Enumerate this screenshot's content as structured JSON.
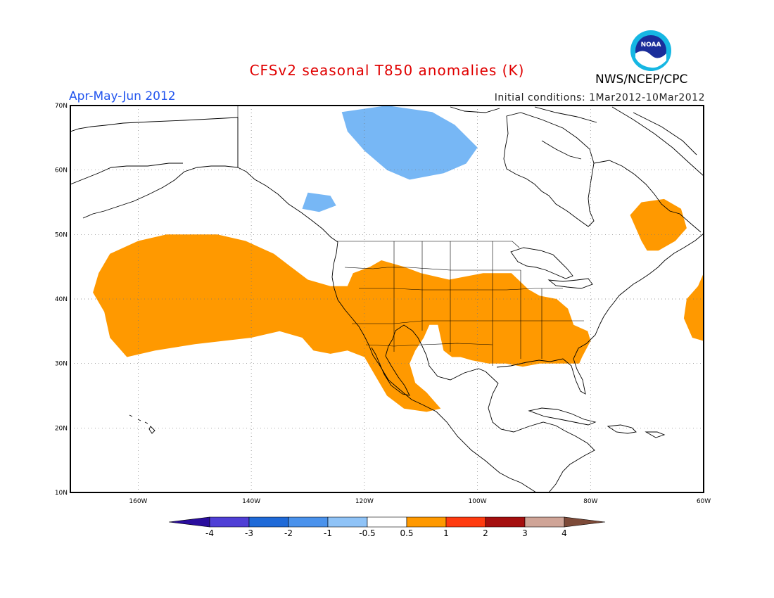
{
  "title": "CFSv2 seasonal T850 anomalies (K)",
  "period": "Apr-May-Jun 2012",
  "initial_conditions": "Initial conditions: 1Mar2012-10Mar2012",
  "agency": "NWS/NCEP/CPC",
  "logo_text": "NOAA",
  "colors": {
    "warm": "#ff9900",
    "cool": "#77b7f5",
    "coast": "#000000",
    "grid": "#777777"
  },
  "chart_data": {
    "type": "heatmap",
    "lon_range": [
      -172,
      -60
    ],
    "lat_range": [
      10,
      70
    ],
    "lon_ticks": [
      "160W",
      "140W",
      "120W",
      "100W",
      "80W",
      "60W"
    ],
    "lat_ticks": [
      "10N",
      "20N",
      "30N",
      "40N",
      "50N",
      "60N",
      "70N"
    ],
    "colorbar": {
      "labels": [
        "-4",
        "-3",
        "-2",
        "-1",
        "-0.5",
        "0.5",
        "1",
        "2",
        "3",
        "4"
      ],
      "colors": [
        "#2a0d9e",
        "#4f3fd6",
        "#1f6ad8",
        "#4a92ec",
        "#8fc3f7",
        "#ffffff",
        "#ff9900",
        "#ff3b10",
        "#a50f0f",
        "#cfa497",
        "#7d4a38"
      ]
    },
    "regions": [
      {
        "category": "0.5 to 1",
        "color": "#ff9900",
        "name_hint": "Pacific / US / Mexico",
        "points": [
          [
            -167,
            44
          ],
          [
            -165,
            47
          ],
          [
            -160,
            49
          ],
          [
            -155,
            50
          ],
          [
            -146,
            50
          ],
          [
            -141,
            49
          ],
          [
            -136,
            47
          ],
          [
            -133,
            45
          ],
          [
            -130,
            43
          ],
          [
            -126,
            42
          ],
          [
            -123,
            42
          ],
          [
            -122,
            44
          ],
          [
            -119,
            45
          ],
          [
            -117,
            46
          ],
          [
            -113,
            45
          ],
          [
            -110,
            44
          ],
          [
            -105,
            43
          ],
          [
            -99,
            44
          ],
          [
            -94,
            44
          ],
          [
            -91,
            41.5
          ],
          [
            -89,
            40.5
          ],
          [
            -86,
            40
          ],
          [
            -84,
            38.5
          ],
          [
            -83,
            36
          ],
          [
            -80.5,
            35
          ],
          [
            -80,
            33.5
          ],
          [
            -81.5,
            31
          ],
          [
            -82,
            30
          ],
          [
            -85,
            30
          ],
          [
            -89,
            30
          ],
          [
            -92,
            29.5
          ],
          [
            -95,
            30
          ],
          [
            -98,
            30
          ],
          [
            -101,
            30.5
          ],
          [
            -103,
            31
          ],
          [
            -104.5,
            31
          ],
          [
            -106,
            32
          ],
          [
            -107,
            36
          ],
          [
            -108.5,
            36
          ],
          [
            -109.5,
            34
          ],
          [
            -111,
            32
          ],
          [
            -112,
            30
          ],
          [
            -111,
            27
          ],
          [
            -109,
            25.5
          ],
          [
            -106.5,
            23
          ],
          [
            -109,
            22.5
          ],
          [
            -113,
            23
          ],
          [
            -116,
            25
          ],
          [
            -118,
            28
          ],
          [
            -120,
            31
          ],
          [
            -123,
            32
          ],
          [
            -126,
            31.5
          ],
          [
            -129,
            32
          ],
          [
            -131,
            34
          ],
          [
            -135,
            35
          ],
          [
            -140,
            34
          ],
          [
            -150,
            33
          ],
          [
            -157,
            32
          ],
          [
            -162,
            31
          ],
          [
            -165,
            34
          ],
          [
            -166,
            38
          ],
          [
            -168,
            41
          ]
        ]
      },
      {
        "category": "0.5 to 1",
        "color": "#ff9900",
        "name_hint": "Gulf of St. Lawrence",
        "points": [
          [
            -73,
            53
          ],
          [
            -71,
            55
          ],
          [
            -67,
            55.5
          ],
          [
            -64,
            54
          ],
          [
            -63,
            51
          ],
          [
            -65,
            49
          ],
          [
            -68,
            47.5
          ],
          [
            -70,
            47.5
          ],
          [
            -71,
            49
          ],
          [
            -72,
            51
          ]
        ]
      },
      {
        "category": "0.5 to 1",
        "color": "#ff9900",
        "name_hint": "Atlantic east edge",
        "points": [
          [
            -60,
            44
          ],
          [
            -61,
            42
          ],
          [
            -63,
            40
          ],
          [
            -63.5,
            37
          ],
          [
            -62,
            34
          ],
          [
            -60,
            33.5
          ]
        ]
      },
      {
        "category": "-1 to -0.5",
        "color": "#77b7f5",
        "name_hint": "Canadian Arctic",
        "points": [
          [
            -124,
            69
          ],
          [
            -116,
            70
          ],
          [
            -108,
            69
          ],
          [
            -104,
            67
          ],
          [
            -100,
            63.5
          ],
          [
            -102,
            61
          ],
          [
            -106,
            59.5
          ],
          [
            -112,
            58.5
          ],
          [
            -116,
            60
          ],
          [
            -120,
            63
          ],
          [
            -123,
            66
          ]
        ]
      },
      {
        "category": "-1 to -0.5",
        "color": "#77b7f5",
        "name_hint": "Gulf of Alaska patch",
        "points": [
          [
            -130,
            56.5
          ],
          [
            -126,
            56
          ],
          [
            -125,
            54.5
          ],
          [
            -128,
            53.5
          ],
          [
            -131,
            54
          ]
        ]
      }
    ]
  }
}
